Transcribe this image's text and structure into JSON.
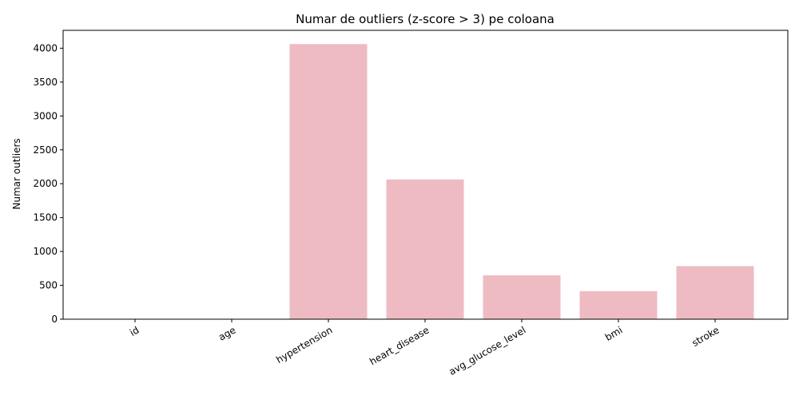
{
  "chart_data": {
    "type": "bar",
    "title": "Numar de outliers (z-score > 3) pe coloana",
    "xlabel": "",
    "ylabel": "Numar outliers",
    "categories": [
      "id",
      "age",
      "hypertension",
      "heart_disease",
      "avg_glucose_level",
      "bmi",
      "stroke"
    ],
    "values": [
      0,
      0,
      4061,
      2062,
      647,
      414,
      783
    ],
    "ylim": [
      0,
      4264
    ],
    "yticks": [
      0,
      500,
      1000,
      1500,
      2000,
      2500,
      3000,
      3500,
      4000
    ],
    "bar_color": "#eebbc3",
    "xtick_rotation": -30,
    "grid": false,
    "legend": "none"
  }
}
